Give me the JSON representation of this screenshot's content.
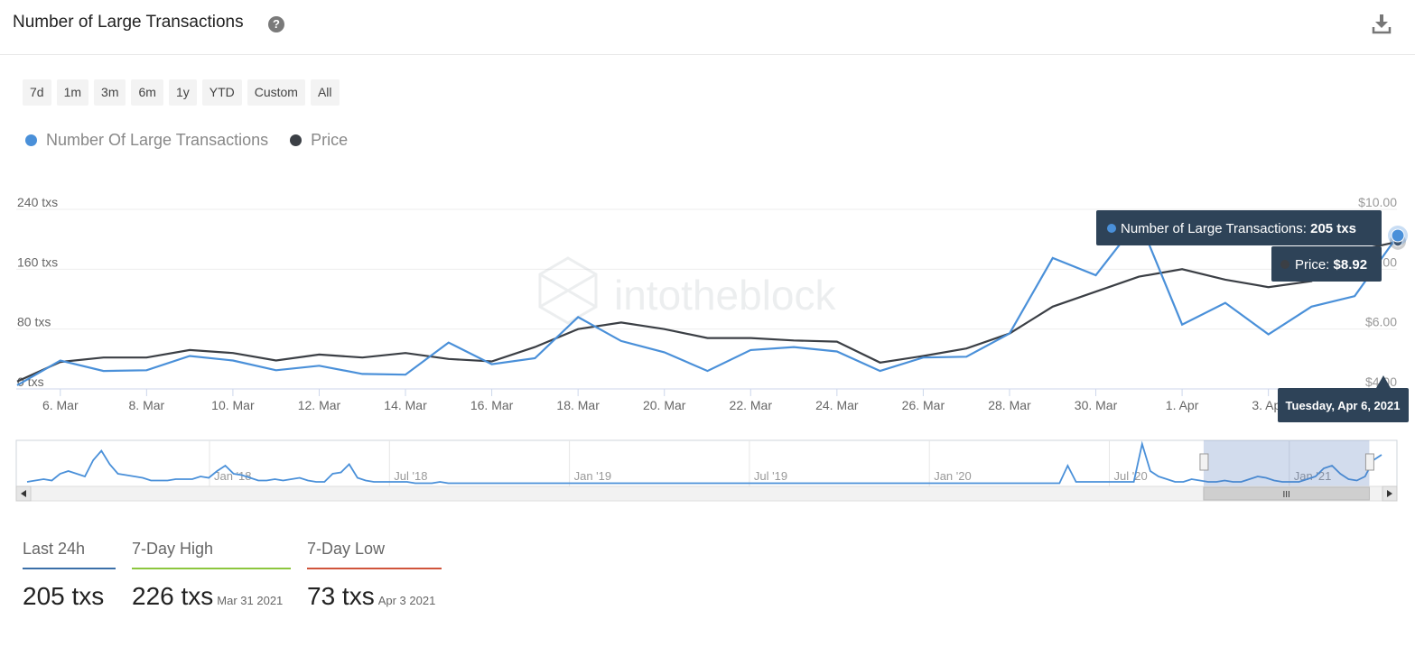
{
  "header": {
    "title": "Number of Large Transactions",
    "help_icon": "question-icon",
    "download_icon": "download-icon"
  },
  "ranges": [
    "7d",
    "1m",
    "3m",
    "6m",
    "1y",
    "YTD",
    "Custom",
    "All"
  ],
  "legend": [
    {
      "label": "Number Of Large Transactions",
      "color": "#4a90d9"
    },
    {
      "label": "Price",
      "color": "#3b3f45"
    }
  ],
  "watermark": "intotheblock",
  "tooltip": {
    "series_label": "Number of Large Transactions:",
    "series_value": "205 txs",
    "price_label": "Price:",
    "price_value": "$8.92",
    "date": "Tuesday, Apr 6, 2021"
  },
  "chart_data": {
    "type": "line",
    "x": [
      "Mar 5",
      "Mar 6",
      "Mar 7",
      "Mar 8",
      "Mar 9",
      "Mar 10",
      "Mar 11",
      "Mar 12",
      "Mar 13",
      "Mar 14",
      "Mar 15",
      "Mar 16",
      "Mar 17",
      "Mar 18",
      "Mar 19",
      "Mar 20",
      "Mar 21",
      "Mar 22",
      "Mar 23",
      "Mar 24",
      "Mar 25",
      "Mar 26",
      "Mar 27",
      "Mar 28",
      "Mar 29",
      "Mar 30",
      "Mar 31",
      "Apr 1",
      "Apr 2",
      "Apr 3",
      "Apr 4",
      "Apr 5",
      "Apr 6"
    ],
    "x_tick_labels": [
      "6. Mar",
      "8. Mar",
      "10. Mar",
      "12. Mar",
      "14. Mar",
      "16. Mar",
      "18. Mar",
      "20. Mar",
      "22. Mar",
      "24. Mar",
      "26. Mar",
      "28. Mar",
      "30. Mar",
      "1. Apr",
      "3. Apr"
    ],
    "series": [
      {
        "name": "Number Of Large Transactions",
        "axis": "left",
        "color": "#4a90d9",
        "values": [
          5,
          38,
          24,
          25,
          44,
          38,
          25,
          31,
          20,
          19,
          62,
          33,
          41,
          96,
          64,
          49,
          24,
          52,
          56,
          50,
          24,
          42,
          43,
          74,
          175,
          152,
          226,
          86,
          115,
          73,
          110,
          124,
          205
        ]
      },
      {
        "name": "Price",
        "axis": "right",
        "color": "#3b3f45",
        "values": [
          4.25,
          4.9,
          5.05,
          5.05,
          5.3,
          5.2,
          4.95,
          5.15,
          5.05,
          5.2,
          5.0,
          4.92,
          5.4,
          6.0,
          6.22,
          6.0,
          5.7,
          5.7,
          5.62,
          5.58,
          4.88,
          5.1,
          5.35,
          5.85,
          6.75,
          7.25,
          7.75,
          8.0,
          7.65,
          7.4,
          7.6,
          8.6,
          8.92
        ]
      }
    ],
    "y_left": {
      "ticks": [
        "0 txs",
        "80 txs",
        "160 txs",
        "240 txs"
      ],
      "range": [
        0,
        240
      ]
    },
    "y_right": {
      "ticks": [
        "$4.00",
        "$6.00",
        "$8.00",
        "$10.00"
      ],
      "range": [
        4,
        10
      ]
    },
    "navigator": {
      "labels": [
        "Jan '18",
        "Jul '18",
        "Jan '19",
        "Jul '19",
        "Jan '20",
        "Jul '20",
        "Jan '21"
      ],
      "values": [
        2,
        3,
        4,
        3,
        8,
        10,
        8,
        6,
        18,
        25,
        15,
        8,
        7,
        6,
        5,
        3,
        3,
        3,
        4,
        4,
        4,
        6,
        5,
        10,
        14,
        8,
        7,
        5,
        3,
        3,
        4,
        3,
        4,
        5,
        3,
        2,
        2,
        8,
        9,
        15,
        5,
        3,
        2,
        2,
        2,
        2,
        2,
        1,
        1,
        1,
        2,
        1,
        1,
        1,
        1,
        1,
        1,
        1,
        1,
        1,
        1,
        1,
        1,
        1,
        1,
        1,
        1,
        1,
        1,
        1,
        1,
        1,
        1,
        1,
        1,
        1,
        1,
        1,
        1,
        1,
        1,
        1,
        1,
        1,
        1,
        1,
        1,
        1,
        1,
        1,
        1,
        1,
        1,
        1,
        1,
        1,
        1,
        1,
        1,
        1,
        1,
        1,
        1,
        1,
        1,
        1,
        1,
        1,
        1,
        1,
        1,
        1,
        1,
        1,
        1,
        1,
        1,
        1,
        1,
        1,
        1,
        1,
        1,
        1,
        1,
        1,
        14,
        2,
        2,
        2,
        2,
        2,
        2,
        2,
        2,
        30,
        10,
        6,
        4,
        2,
        2,
        4,
        3,
        2,
        2,
        3,
        2,
        2,
        4,
        6,
        5,
        3,
        2,
        2,
        2,
        4,
        6,
        12,
        14,
        8,
        4,
        3,
        6,
        18,
        22
      ],
      "selection": [
        0.86,
        0.98
      ]
    }
  },
  "stats": [
    {
      "label": "Last 24h",
      "value": "205 txs",
      "date": "",
      "color": "#3b6fa8"
    },
    {
      "label": "7-Day High",
      "value": "226 txs",
      "date": "Mar 31 2021",
      "color": "#8cc63e"
    },
    {
      "label": "7-Day Low",
      "value": "73 txs",
      "date": "Apr 3 2021",
      "color": "#d0543b"
    }
  ]
}
